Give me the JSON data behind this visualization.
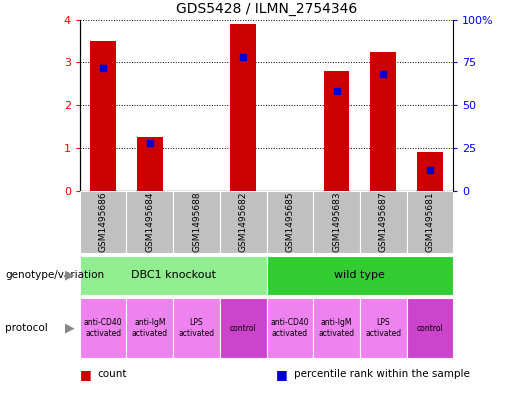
{
  "title": "GDS5428 / ILMN_2754346",
  "samples": [
    "GSM1495686",
    "GSM1495684",
    "GSM1495688",
    "GSM1495682",
    "GSM1495685",
    "GSM1495683",
    "GSM1495687",
    "GSM1495681"
  ],
  "counts": [
    3.5,
    1.25,
    0.0,
    3.9,
    0.0,
    2.8,
    3.25,
    0.9
  ],
  "percentile_ranks": [
    0.72,
    0.28,
    0.0,
    0.78,
    0.0,
    0.58,
    0.68,
    0.12
  ],
  "ylim_left": [
    0,
    4
  ],
  "ylim_right": [
    0,
    100
  ],
  "yticks_left": [
    0,
    1,
    2,
    3,
    4
  ],
  "yticks_right": [
    0,
    25,
    50,
    75,
    100
  ],
  "bar_color": "#CC0000",
  "percentile_color": "#0000CC",
  "genotype_groups": [
    {
      "label": "DBC1 knockout",
      "span": [
        0,
        4
      ],
      "color": "#90EE90"
    },
    {
      "label": "wild type",
      "span": [
        4,
        8
      ],
      "color": "#33CC33"
    }
  ],
  "protocols": [
    {
      "label": "anti-CD40\nactivated",
      "color": "#EE82EE"
    },
    {
      "label": "anti-IgM\nactivated",
      "color": "#EE82EE"
    },
    {
      "label": "LPS\nactivated",
      "color": "#EE82EE"
    },
    {
      "label": "control",
      "color": "#CC44CC"
    },
    {
      "label": "anti-CD40\nactivated",
      "color": "#EE82EE"
    },
    {
      "label": "anti-IgM\nactivated",
      "color": "#EE82EE"
    },
    {
      "label": "LPS\nactivated",
      "color": "#EE82EE"
    },
    {
      "label": "control",
      "color": "#CC44CC"
    }
  ],
  "legend_items": [
    {
      "label": "count",
      "color": "#CC0000"
    },
    {
      "label": "percentile rank within the sample",
      "color": "#0000CC"
    }
  ],
  "sample_bg": "#C0C0C0",
  "fig_bg": "#FFFFFF"
}
